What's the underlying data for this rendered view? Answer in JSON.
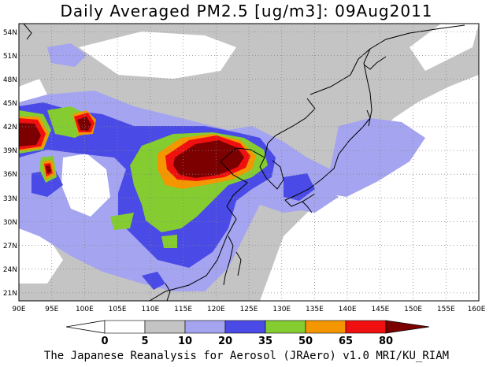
{
  "title": "Daily Averaged PM2.5 [ug/m3]: 09Aug2011",
  "footer": "The Japanese Reanalysis for Aerosol (JRAero) v1.0 MRI/KU_RIAM",
  "map": {
    "lon_range": [
      90,
      160
    ],
    "lat_range": [
      20,
      55
    ],
    "lon_ticks": [
      "90E",
      "95E",
      "100E",
      "105E",
      "110E",
      "115E",
      "120E",
      "125E",
      "130E",
      "135E",
      "140E",
      "145E",
      "150E",
      "155E",
      "160E"
    ],
    "lat_ticks": [
      "21N",
      "24N",
      "27N",
      "30N",
      "33N",
      "36N",
      "39N",
      "42N",
      "45N",
      "48N",
      "51N",
      "54N"
    ],
    "grid": true,
    "field": "PM2.5 daily mean concentration",
    "units": "ug/m3"
  },
  "colorbar": {
    "levels": [
      "0",
      "5",
      "10",
      "20",
      "35",
      "50",
      "65",
      "80"
    ],
    "colors": [
      "#ffffff",
      "#c4c4c4",
      "#a4a4f0",
      "#4a4ae6",
      "#84cc30",
      "#f49600",
      "#f01010",
      "#7c0000"
    ]
  }
}
